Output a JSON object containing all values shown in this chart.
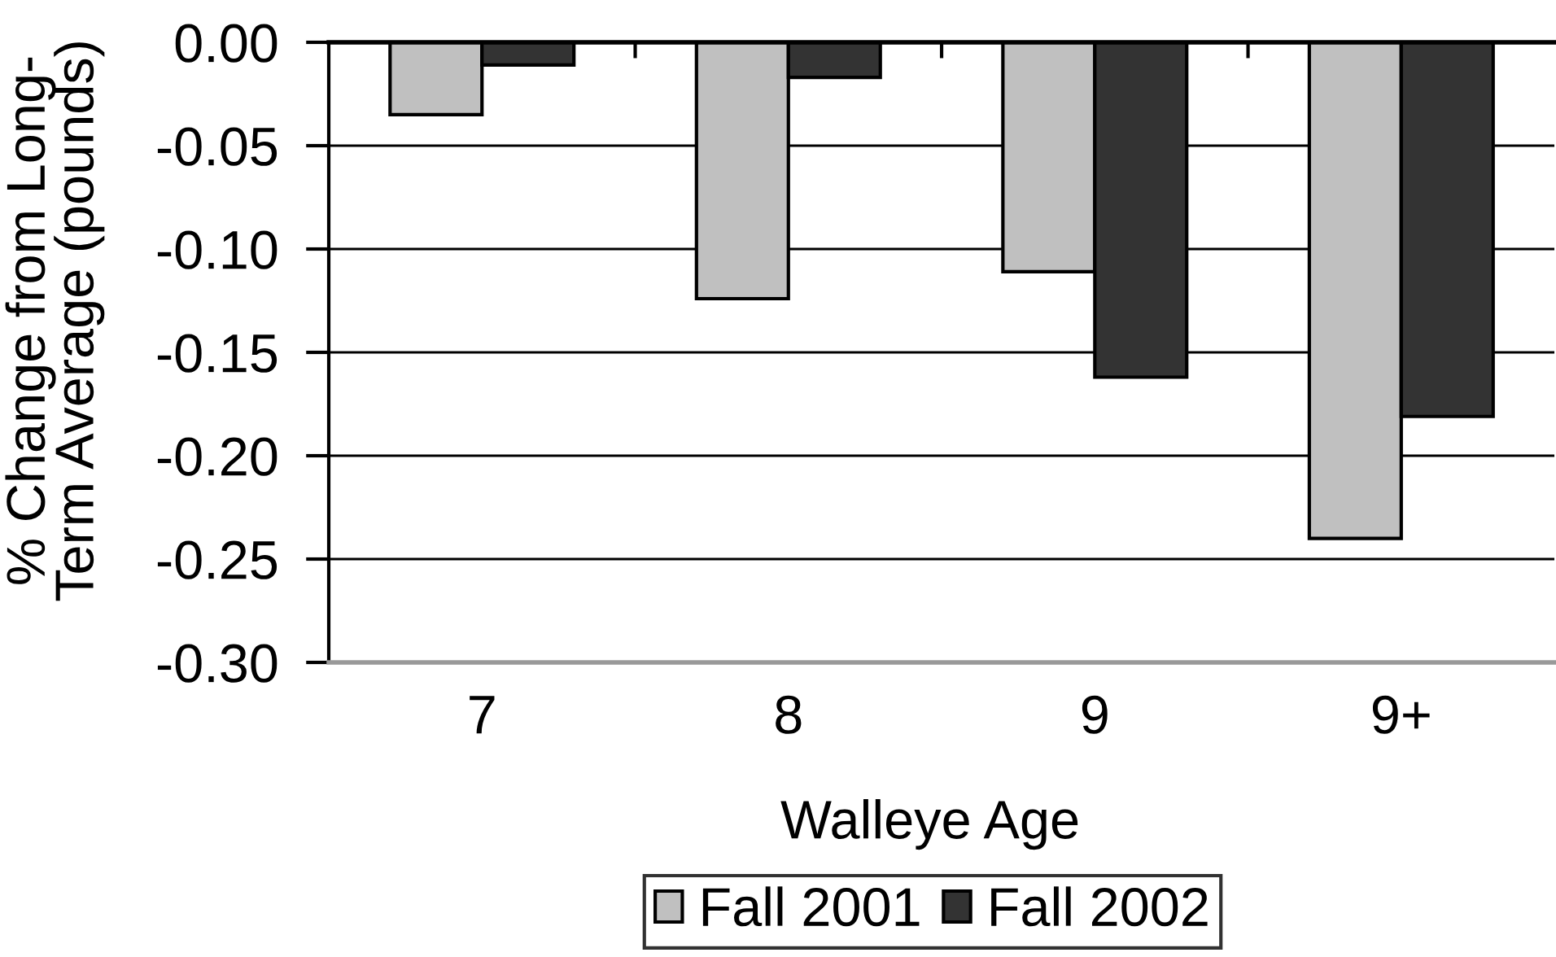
{
  "chart_data": {
    "type": "bar",
    "categories": [
      "7",
      "8",
      "9",
      "9+"
    ],
    "series": [
      {
        "name": "Fall 2001",
        "color": "#c0c0c0",
        "values": [
          -0.035,
          -0.124,
          -0.111,
          -0.24
        ]
      },
      {
        "name": "Fall 2002",
        "color": "#333333",
        "values": [
          -0.011,
          -0.017,
          -0.162,
          -0.181
        ]
      }
    ],
    "xlabel": "Walleye Age",
    "ylabel": "% Change from Long-\nTerm Average (pounds)",
    "ylim": [
      -0.3,
      0.0
    ],
    "yticks": [
      {
        "value": 0.0,
        "label": "0.00"
      },
      {
        "value": -0.05,
        "label": "-0.05"
      },
      {
        "value": -0.1,
        "label": "-0.10"
      },
      {
        "value": -0.15,
        "label": "-0.15"
      },
      {
        "value": -0.2,
        "label": "-0.20"
      },
      {
        "value": -0.25,
        "label": "-0.25"
      },
      {
        "value": -0.3,
        "label": "-0.30"
      }
    ],
    "grid": "y",
    "legend": "bottom"
  }
}
